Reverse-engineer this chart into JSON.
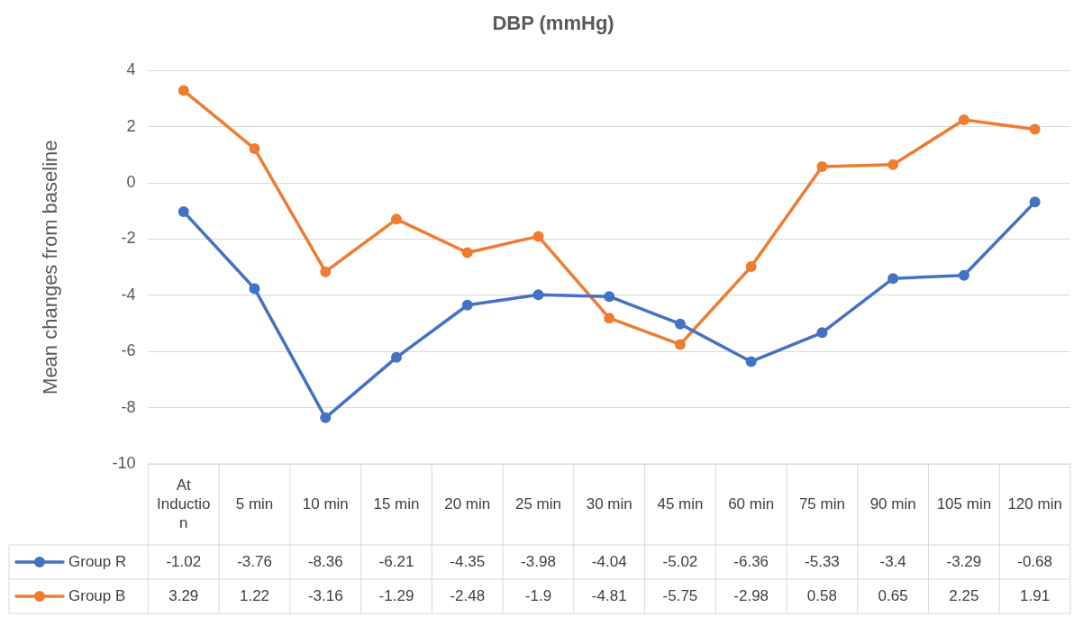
{
  "chart_data": {
    "type": "line",
    "title": "DBP (mmHg)",
    "ylabel": "Mean changes from baseline",
    "categories": [
      "At Induction",
      "5 min",
      "10 min",
      "15 min",
      "20 min",
      "25 min",
      "30 min",
      "45 min",
      "60 min",
      "75 min",
      "90 min",
      "105 min",
      "120 min"
    ],
    "series": [
      {
        "name": "Group R",
        "color": "#4472c4",
        "values": [
          -1.02,
          -3.76,
          -8.36,
          -6.21,
          -4.35,
          -3.98,
          -4.04,
          -5.02,
          -6.36,
          -5.33,
          -3.4,
          -3.29,
          -0.68
        ]
      },
      {
        "name": "Group B",
        "color": "#ed7d31",
        "values": [
          3.29,
          1.22,
          -3.16,
          -1.29,
          -2.48,
          -1.9,
          -4.81,
          -5.75,
          -2.98,
          0.58,
          0.65,
          2.25,
          1.91
        ]
      }
    ],
    "ylim": [
      -10,
      4
    ],
    "yticks": [
      -10,
      -8,
      -6,
      -4,
      -2,
      0,
      2,
      4
    ],
    "grid": "y",
    "marker": "circle",
    "line_style": "solid",
    "legend": "bottom",
    "data_labels": true
  }
}
